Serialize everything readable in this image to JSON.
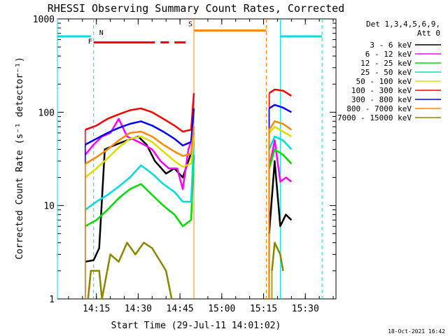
{
  "chart_data": {
    "type": "line",
    "title": "RHESSI Observing Summary Count Rates, Corrected",
    "xlabel": "Start Time (29-Jul-11 14:01:02)",
    "ylabel": "Corrected Count Rate (s⁻¹ detector⁻¹)",
    "y_scale": "log",
    "ylim": [
      1,
      1000
    ],
    "xlim": [
      "14:01",
      "15:41"
    ],
    "x_ticks": [
      "14:15",
      "14:30",
      "14:45",
      "15:00",
      "15:15",
      "15:30"
    ],
    "y_ticks": [
      "1",
      "10",
      "100",
      "1000"
    ],
    "footer": "18-Oct-2021 16:42",
    "legend": {
      "header": [
        "Det 1,3,4,5,6,9,",
        "Att 0"
      ],
      "position": "right"
    },
    "series": [
      {
        "name": "3 - 6 keV",
        "color": "#000000",
        "segments": [
          [
            [
              "14:11",
              2.5
            ],
            [
              "14:14",
              2.6
            ],
            [
              "14:16",
              3.5
            ],
            [
              "14:18",
              40
            ],
            [
              "14:22",
              45
            ],
            [
              "14:26",
              50
            ],
            [
              "14:30",
              55
            ],
            [
              "14:33",
              45
            ],
            [
              "14:36",
              30
            ],
            [
              "14:40",
              22
            ],
            [
              "14:43",
              25
            ],
            [
              "14:46",
              20
            ],
            [
              "14:48",
              30
            ],
            [
              "14:50",
              45
            ]
          ],
          [
            [
              "15:17",
              5
            ],
            [
              "15:19",
              30
            ],
            [
              "15:21",
              6
            ],
            [
              "15:23",
              8
            ],
            [
              "15:25",
              7
            ]
          ]
        ]
      },
      {
        "name": "6 - 12 keV",
        "color": "#ff00ff",
        "segments": [
          [
            [
              "14:11",
              35
            ],
            [
              "14:14",
              45
            ],
            [
              "14:17",
              55
            ],
            [
              "14:20",
              60
            ],
            [
              "14:23",
              85
            ],
            [
              "14:26",
              55
            ],
            [
              "14:29",
              50
            ],
            [
              "14:32",
              45
            ],
            [
              "14:35",
              40
            ],
            [
              "14:38",
              30
            ],
            [
              "14:41",
              25
            ],
            [
              "14:44",
              25
            ],
            [
              "14:46",
              15
            ],
            [
              "14:48",
              40
            ],
            [
              "14:50",
              60
            ]
          ],
          [
            [
              "15:17",
              25
            ],
            [
              "15:19",
              50
            ],
            [
              "15:21",
              18
            ],
            [
              "15:23",
              20
            ],
            [
              "15:25",
              18
            ]
          ]
        ]
      },
      {
        "name": "12 - 25 keV",
        "color": "#00dd00",
        "segments": [
          [
            [
              "14:11",
              6
            ],
            [
              "14:15",
              7
            ],
            [
              "14:19",
              9
            ],
            [
              "14:23",
              12
            ],
            [
              "14:27",
              15
            ],
            [
              "14:31",
              17
            ],
            [
              "14:35",
              13
            ],
            [
              "14:39",
              10
            ],
            [
              "14:43",
              8
            ],
            [
              "14:46",
              6
            ],
            [
              "14:49",
              7
            ],
            [
              "14:50",
              35
            ]
          ],
          [
            [
              "15:17",
              25
            ],
            [
              "15:19",
              40
            ],
            [
              "15:22",
              35
            ],
            [
              "15:25",
              28
            ]
          ]
        ]
      },
      {
        "name": "25 - 50 keV",
        "color": "#00dddd",
        "segments": [
          [
            [
              "14:11",
              9
            ],
            [
              "14:15",
              11
            ],
            [
              "14:19",
              13
            ],
            [
              "14:23",
              16
            ],
            [
              "14:27",
              20
            ],
            [
              "14:31",
              27
            ],
            [
              "14:35",
              22
            ],
            [
              "14:39",
              17
            ],
            [
              "14:43",
              14
            ],
            [
              "14:46",
              11
            ],
            [
              "14:49",
              11
            ],
            [
              "14:50",
              50
            ]
          ],
          [
            [
              "15:17",
              40
            ],
            [
              "15:19",
              55
            ],
            [
              "15:22",
              50
            ],
            [
              "15:25",
              40
            ]
          ]
        ]
      },
      {
        "name": "50 - 100 keV",
        "color": "#dddd00",
        "segments": [
          [
            [
              "14:11",
              20
            ],
            [
              "14:15",
              25
            ],
            [
              "14:19",
              32
            ],
            [
              "14:23",
              42
            ],
            [
              "14:27",
              52
            ],
            [
              "14:31",
              55
            ],
            [
              "14:35",
              48
            ],
            [
              "14:39",
              38
            ],
            [
              "14:43",
              30
            ],
            [
              "14:46",
              26
            ],
            [
              "14:49",
              28
            ],
            [
              "14:50",
              55
            ]
          ],
          [
            [
              "15:17",
              60
            ],
            [
              "15:19",
              70
            ],
            [
              "15:22",
              62
            ],
            [
              "15:25",
              55
            ]
          ]
        ]
      },
      {
        "name": "100 - 300 keV",
        "color": "#ff0000",
        "segments": [
          [
            [
              "14:11",
              65
            ],
            [
              "14:15",
              72
            ],
            [
              "14:19",
              85
            ],
            [
              "14:23",
              95
            ],
            [
              "14:27",
              105
            ],
            [
              "14:31",
              110
            ],
            [
              "14:35",
              100
            ],
            [
              "14:39",
              85
            ],
            [
              "14:43",
              72
            ],
            [
              "14:46",
              62
            ],
            [
              "14:49",
              65
            ],
            [
              "14:50",
              160
            ]
          ],
          [
            [
              "15:17",
              160
            ],
            [
              "15:19",
              175
            ],
            [
              "15:22",
              170
            ],
            [
              "15:25",
              150
            ]
          ]
        ]
      },
      {
        "name": "300 - 800 keV",
        "color": "#0000ff",
        "segments": [
          [
            [
              "14:11",
              45
            ],
            [
              "14:15",
              52
            ],
            [
              "14:19",
              60
            ],
            [
              "14:23",
              68
            ],
            [
              "14:27",
              75
            ],
            [
              "14:31",
              80
            ],
            [
              "14:35",
              72
            ],
            [
              "14:39",
              62
            ],
            [
              "14:43",
              52
            ],
            [
              "14:46",
              44
            ],
            [
              "14:49",
              48
            ],
            [
              "14:50",
              110
            ]
          ],
          [
            [
              "15:17",
              110
            ],
            [
              "15:19",
              120
            ],
            [
              "15:22",
              112
            ],
            [
              "15:25",
              100
            ]
          ]
        ]
      },
      {
        "name": "800 - 7000 keV",
        "color": "#ff8800",
        "segments": [
          [
            [
              "14:11",
              28
            ],
            [
              "14:15",
              33
            ],
            [
              "14:19",
              40
            ],
            [
              "14:23",
              50
            ],
            [
              "14:27",
              60
            ],
            [
              "14:31",
              62
            ],
            [
              "14:35",
              55
            ],
            [
              "14:39",
              45
            ],
            [
              "14:43",
              38
            ],
            [
              "14:46",
              34
            ],
            [
              "14:49",
              36
            ],
            [
              "14:50",
              70
            ]
          ],
          [
            [
              "15:17",
              65
            ],
            [
              "15:19",
              80
            ],
            [
              "15:22",
              75
            ],
            [
              "15:25",
              65
            ]
          ]
        ]
      },
      {
        "name": "7000 - 15000 keV",
        "color": "#888800",
        "segments": [
          [
            [
              "14:12",
              1.0
            ],
            [
              "14:13",
              2.0
            ],
            [
              "14:16",
              2.0
            ],
            [
              "14:17",
              1.0
            ],
            [
              "14:20",
              3.0
            ],
            [
              "14:23",
              2.5
            ],
            [
              "14:26",
              4.0
            ],
            [
              "14:29",
              3.0
            ],
            [
              "14:32",
              4.0
            ],
            [
              "14:35",
              3.5
            ],
            [
              "14:38",
              2.5
            ],
            [
              "14:40",
              2.0
            ],
            [
              "14:42",
              1.0
            ]
          ],
          [
            [
              "15:18",
              2.0
            ],
            [
              "15:19",
              4.0
            ],
            [
              "15:21",
              3.0
            ],
            [
              "15:22",
              2.0
            ]
          ]
        ]
      }
    ],
    "annotations": [
      {
        "label": "N",
        "color": "#00dddd",
        "level": 650,
        "solid": [
          [
            "14:01",
            "14:13"
          ],
          [
            "15:21",
            "15:36"
          ]
        ],
        "vlines_solid": [
          "14:01",
          "15:21"
        ],
        "vlines_dashed": [
          "14:14",
          "15:36"
        ],
        "label_at": "14:16"
      },
      {
        "label": "F",
        "color": "#ff0000",
        "level": 560,
        "solid": [
          [
            "14:14",
            "14:36"
          ],
          [
            "14:38",
            "14:41"
          ],
          [
            "14:43",
            "14:47"
          ]
        ],
        "label_at": "14:12"
      },
      {
        "label": "S",
        "color": "#ff8800",
        "level": 750,
        "solid": [
          [
            "14:50",
            "15:16"
          ]
        ],
        "vlines_solid": [
          "14:50"
        ],
        "vlines_dashed": [
          "15:16"
        ],
        "label_at": "14:48"
      }
    ]
  }
}
